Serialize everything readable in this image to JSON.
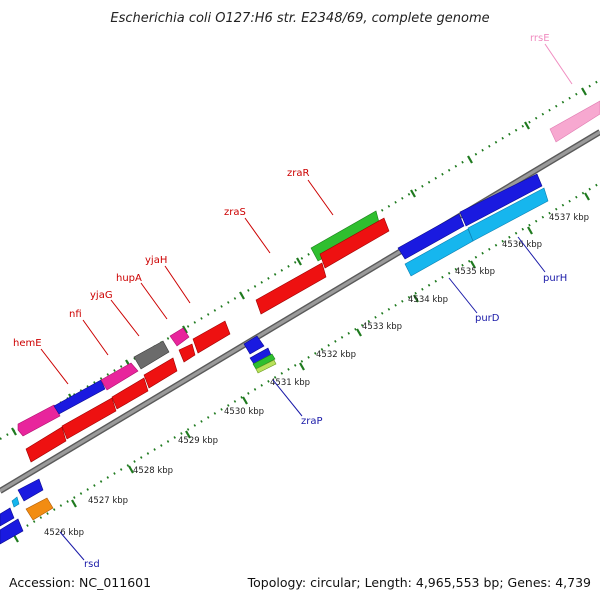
{
  "title": "Escherichia coli O127:H6 str. E2348/69, complete genome",
  "footer": {
    "accession": "Accession: NC_011601",
    "summary": "Topology: circular; Length: 4,965,553 bp; Genes: 4,739"
  },
  "kbp_labels": [
    "4526 kbp",
    "4527 kbp",
    "4528 kbp",
    "4529 kbp",
    "4530 kbp",
    "4531 kbp",
    "4532 kbp",
    "4533 kbp",
    "4534 kbp",
    "4535 kbp",
    "4536 kbp",
    "4537 kbp"
  ],
  "gene_labels": {
    "hemE": "hemE",
    "nfi": "nfi",
    "yjaG": "yjaG",
    "hupA": "hupA",
    "yjaH": "yjaH",
    "zraS": "zraS",
    "zraR": "zraR",
    "rrsE": "rrsE",
    "zraP": "zraP",
    "purD": "purD",
    "purH": "purH",
    "rsd": "rsd"
  },
  "colors": {
    "backbone": "#8c8c8c",
    "tick": "#1f7a1f",
    "forward_label": "#cc0000",
    "reverse_label": "#1a1aa8",
    "rrna_label": "#f08cc0",
    "cds_red": "#ee1111",
    "cds_blue": "#1a1ae0",
    "cds_cyan": "#16b6ee",
    "cds_green": "#2fbf2f",
    "cds_magenta": "#e8259c",
    "cds_gray": "#6b6b6b",
    "cds_orange": "#f28c12",
    "rrna_pink": "#f7a8d0"
  }
}
